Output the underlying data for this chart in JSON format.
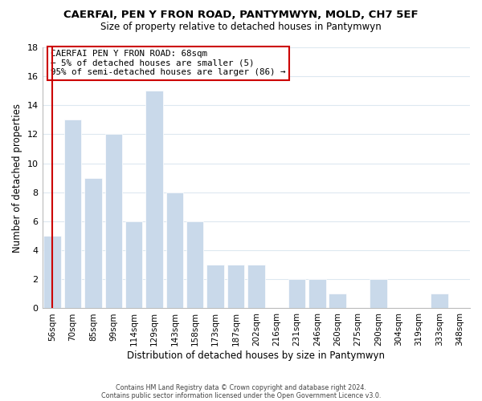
{
  "title": "CAERFAI, PEN Y FRON ROAD, PANTYMWYN, MOLD, CH7 5EF",
  "subtitle": "Size of property relative to detached houses in Pantymwyn",
  "xlabel": "Distribution of detached houses by size in Pantymwyn",
  "ylabel": "Number of detached properties",
  "footer1": "Contains HM Land Registry data © Crown copyright and database right 2024.",
  "footer2": "Contains public sector information licensed under the Open Government Licence v3.0.",
  "categories": [
    "56sqm",
    "70sqm",
    "85sqm",
    "99sqm",
    "114sqm",
    "129sqm",
    "143sqm",
    "158sqm",
    "173sqm",
    "187sqm",
    "202sqm",
    "216sqm",
    "231sqm",
    "246sqm",
    "260sqm",
    "275sqm",
    "290sqm",
    "304sqm",
    "319sqm",
    "333sqm",
    "348sqm"
  ],
  "values": [
    5,
    13,
    9,
    12,
    6,
    15,
    8,
    6,
    3,
    3,
    3,
    0,
    2,
    2,
    1,
    0,
    2,
    0,
    0,
    1,
    0
  ],
  "bar_color": "#c9d9ea",
  "highlight_bar_index": 0,
  "highlight_edge_color": "#cc0000",
  "ylim": [
    0,
    18
  ],
  "yticks": [
    0,
    2,
    4,
    6,
    8,
    10,
    12,
    14,
    16,
    18
  ],
  "annotation_title": "CAERFAI PEN Y FRON ROAD: 68sqm",
  "annotation_line1": "← 5% of detached houses are smaller (5)",
  "annotation_line2": "95% of semi-detached houses are larger (86) →",
  "annotation_box_edge": "#cc0000",
  "grid_color": "#dde8f0",
  "background_color": "#ffffff"
}
